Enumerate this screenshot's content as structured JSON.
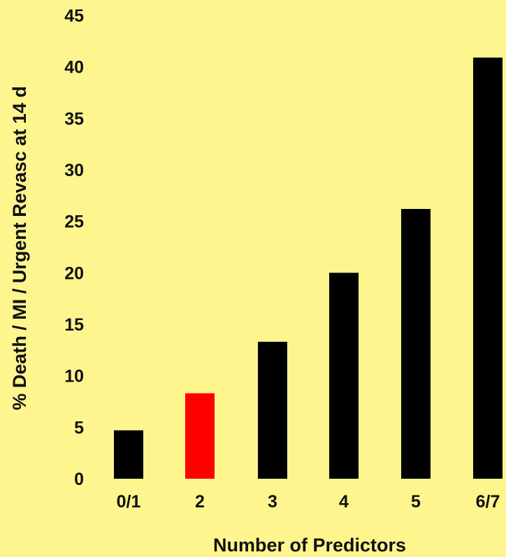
{
  "chart_data": {
    "type": "bar",
    "title": "",
    "xlabel": "Number of Predictors",
    "ylabel": "% Death / MI / Urgent Revasc at 14 d",
    "categories": [
      "0/1",
      "2",
      "3",
      "4",
      "5",
      "6/7"
    ],
    "values": [
      4.7,
      8.3,
      13.3,
      20.0,
      26.2,
      40.9
    ],
    "ylim": [
      0,
      45
    ],
    "yticks": [
      0,
      5,
      10,
      15,
      20,
      25,
      30,
      35,
      40,
      45
    ],
    "grid": false,
    "legend": "none",
    "highlight_index": 1,
    "colors": {
      "background": "#FFF58F",
      "bar": "#000000",
      "highlight_bar": "#FF0000",
      "text": "#111111",
      "highlight_text": "#FF0000"
    }
  }
}
